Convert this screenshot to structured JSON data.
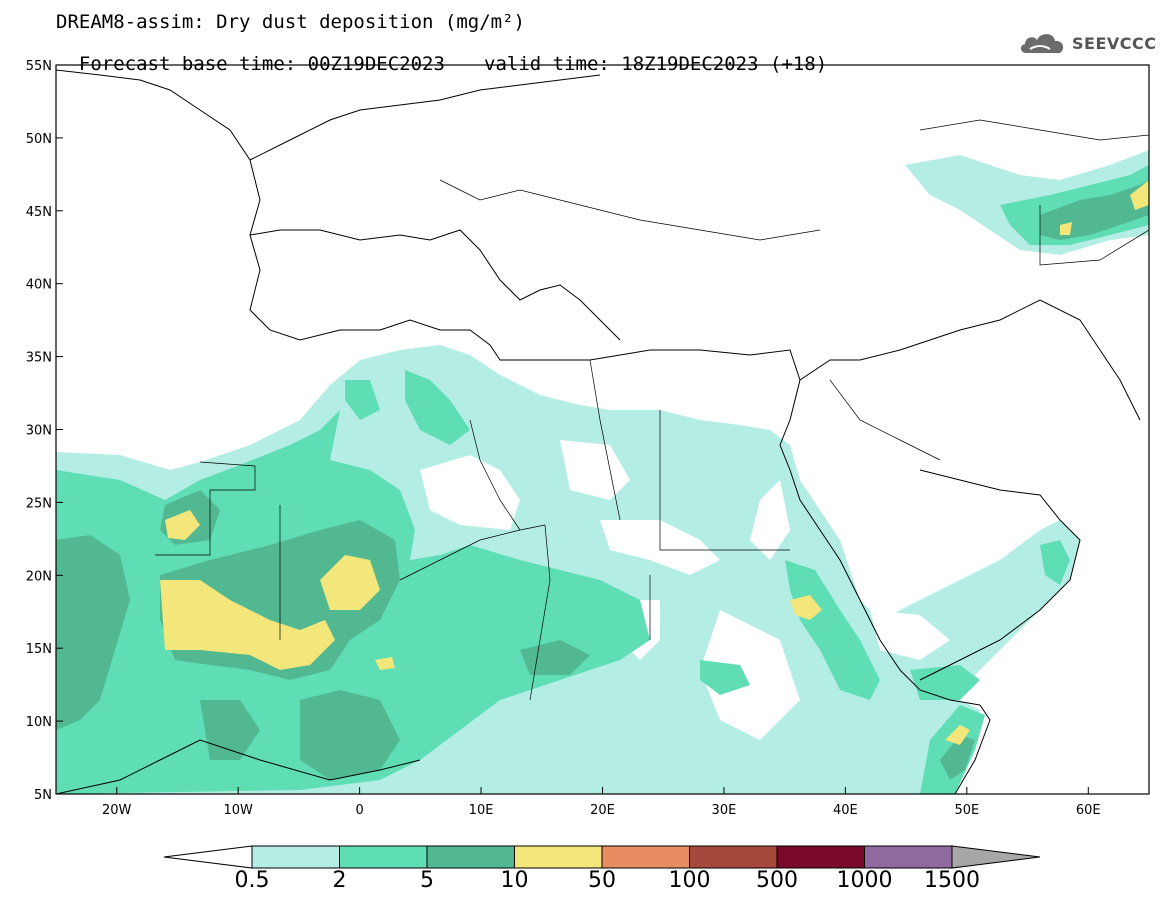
{
  "header": {
    "title": "DREAM8-assim: Dry dust deposition (mg/m²)",
    "base_time": "Forecast base time: 00Z19DEC2023",
    "valid_time": "valid time: 18Z19DEC2023 (+18)"
  },
  "logo": {
    "text": "SEEVCCC",
    "icon": "cloud-icon"
  },
  "axes": {
    "lon_range": [
      -25,
      65
    ],
    "lat_range": [
      5,
      55
    ],
    "x_ticks": [
      {
        "value": -20,
        "label": "20W"
      },
      {
        "value": -10,
        "label": "10W"
      },
      {
        "value": 0,
        "label": "0"
      },
      {
        "value": 10,
        "label": "10E"
      },
      {
        "value": 20,
        "label": "20E"
      },
      {
        "value": 30,
        "label": "30E"
      },
      {
        "value": 40,
        "label": "40E"
      },
      {
        "value": 50,
        "label": "50E"
      },
      {
        "value": 60,
        "label": "60E"
      }
    ],
    "y_ticks": [
      {
        "value": 5,
        "label": "5N"
      },
      {
        "value": 10,
        "label": "10N"
      },
      {
        "value": 15,
        "label": "15N"
      },
      {
        "value": 20,
        "label": "20N"
      },
      {
        "value": 25,
        "label": "25N"
      },
      {
        "value": 30,
        "label": "30N"
      },
      {
        "value": 35,
        "label": "35N"
      },
      {
        "value": 40,
        "label": "40N"
      },
      {
        "value": 45,
        "label": "45N"
      },
      {
        "value": 50,
        "label": "50N"
      },
      {
        "value": 55,
        "label": "55N"
      }
    ]
  },
  "colorbar": {
    "labels": [
      "0.5",
      "2",
      "5",
      "10",
      "50",
      "100",
      "500",
      "1000",
      "1500"
    ],
    "colors": [
      "#b4ede4",
      "#5fddb4",
      "#52b892",
      "#f3e67a",
      "#e88c62",
      "#a6483c",
      "#7a0a2a",
      "#8f6aa0"
    ],
    "under_color": "#ffffff",
    "over_color": "#a7a7a7"
  }
}
